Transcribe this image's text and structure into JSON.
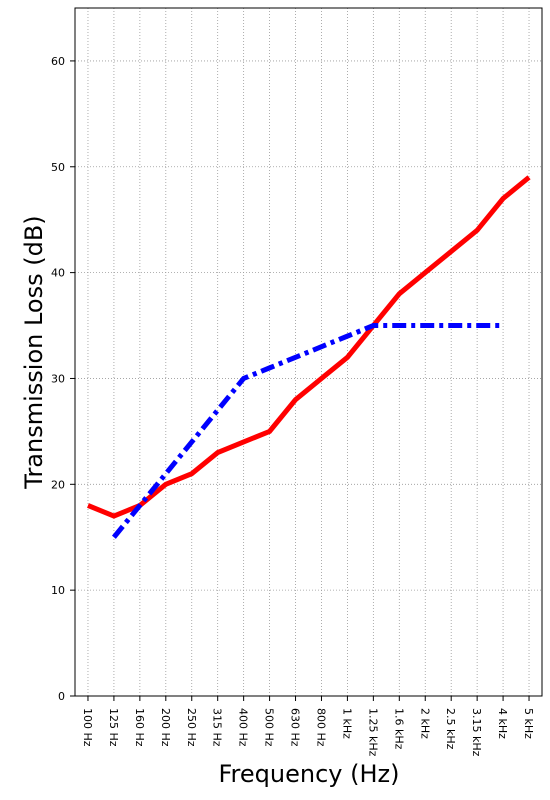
{
  "chart_data": {
    "type": "line",
    "x_label": "Frequency (Hz)",
    "y_label": "Transmission Loss (dB)",
    "categories": [
      "100 Hz",
      "125 Hz",
      "160 Hz",
      "200 Hz",
      "250 Hz",
      "315 Hz",
      "400 Hz",
      "500 Hz",
      "630 Hz",
      "800 Hz",
      "1 kHz",
      "1.25 kHz",
      "1.6 kHz",
      "2 kHz",
      "2.5 kHz",
      "3.15 kHz",
      "4 kHz",
      "5 kHz"
    ],
    "series": [
      {
        "color": "#ff0000",
        "linestyle": "solid",
        "values": [
          18,
          17,
          18,
          20,
          21,
          23,
          24,
          25,
          28,
          30,
          32,
          35,
          38,
          40,
          42,
          44,
          47,
          49
        ]
      },
      {
        "color": "#0000ff",
        "linestyle": "dashdot",
        "values": [
          null,
          15,
          18,
          21,
          24,
          27,
          30,
          31,
          32,
          33,
          34,
          35,
          35,
          35,
          35,
          35,
          35,
          null
        ]
      }
    ],
    "ylim": [
      0,
      65
    ],
    "yticks": [
      0,
      10,
      20,
      30,
      40,
      50,
      60
    ],
    "grid": true
  }
}
